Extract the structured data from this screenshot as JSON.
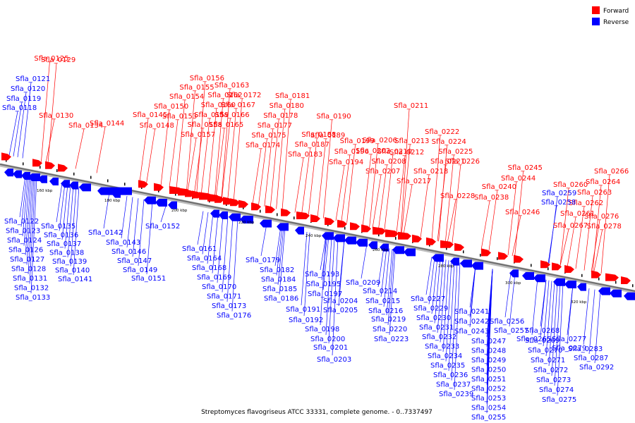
{
  "legend": {
    "forward_label": "Forward",
    "reverse_label": "Reverse",
    "forward_color": "#ff0000",
    "reverse_color": "#0000ff"
  },
  "caption": "Streptomyces flavogriseus ATCC 33331, complete genome. - 0..7337497",
  "ticks": [
    "160 kbp",
    "180 kbp",
    "200 kbp",
    "220 kbp",
    "240 kbp",
    "260 kbp",
    "280 kbp",
    "300 kbp",
    "320 kbp"
  ],
  "forward_genes": [
    "Sfla_0129",
    "Sfla_0125",
    "Sfla_0130",
    "Sfla_0134",
    "Sfla_0144",
    "Sfla_0145",
    "Sfla_0148",
    "Sfla_0150",
    "Sfla_0153",
    "Sfla_0154",
    "Sfla_0155",
    "Sfla_0156",
    "Sfla_0157",
    "Sfla_0158",
    "Sfla_0159",
    "Sfla_0160",
    "Sfla_0162",
    "Sfla_0163",
    "Sfla_0165",
    "Sfla_0166",
    "Sfla_0167",
    "Sfla_0172",
    "Sfla_0174",
    "Sfla_0175",
    "Sfla_0177",
    "Sfla_0178",
    "Sfla_0180",
    "Sfla_0181",
    "Sfla_0183",
    "Sfla_0187",
    "Sfla_0188",
    "Sfla_0189",
    "Sfla_0190",
    "Sfla_0194",
    "Sfla_0196",
    "Sfla_0199",
    "Sfla_0202",
    "Sfla_0206",
    "Sfla_0207",
    "Sfla_0208",
    "Sfla_0210",
    "Sfla_0211",
    "Sfla_0212",
    "Sfla_0213",
    "Sfla_0217",
    "Sfla_0218",
    "Sfla_0221",
    "Sfla_0222",
    "Sfla_0224",
    "Sfla_0225",
    "Sfla_0226",
    "Sfla_0228",
    "Sfla_0238",
    "Sfla_0240",
    "Sfla_0244",
    "Sfla_0245",
    "Sfla_0246",
    "Sfla_0261",
    "Sfla_0262",
    "Sfla_0263",
    "Sfla_0264",
    "Sfla_0266",
    "Sfla_0260",
    "Sfla_0267",
    "Sfla_0276",
    "Sfla_0278"
  ],
  "reverse_top_genes": [
    "Sfla_0121",
    "Sfla_0120",
    "Sfla_0119",
    "Sfla_0118",
    "Sfla_0259",
    "Sfla_0258"
  ],
  "reverse_genes": [
    "Sfla_0122",
    "Sfla_0123",
    "Sfla_0124",
    "Sfla_0126",
    "Sfla_0127",
    "Sfla_0128",
    "Sfla_0131",
    "Sfla_0132",
    "Sfla_0133",
    "Sfla_0135",
    "Sfla_0136",
    "Sfla_0137",
    "Sfla_0138",
    "Sfla_0139",
    "Sfla_0140",
    "Sfla_0141",
    "Sfla_0142",
    "Sfla_0143",
    "Sfla_0146",
    "Sfla_0147",
    "Sfla_0149",
    "Sfla_0151",
    "Sfla_0152",
    "Sfla_0161",
    "Sfla_0164",
    "Sfla_0168",
    "Sfla_0169",
    "Sfla_0170",
    "Sfla_0171",
    "Sfla_0173",
    "Sfla_0176",
    "Sfla_0179",
    "Sfla_0182",
    "Sfla_0184",
    "Sfla_0185",
    "Sfla_0186",
    "Sfla_0191",
    "Sfla_0192",
    "Sfla_0193",
    "Sfla_0195",
    "Sfla_0197",
    "Sfla_0198",
    "Sfla_0200",
    "Sfla_0201",
    "Sfla_0203",
    "Sfla_0204",
    "Sfla_0205",
    "Sfla_0209",
    "Sfla_0214",
    "Sfla_0215",
    "Sfla_0216",
    "Sfla_0219",
    "Sfla_0220",
    "Sfla_0223",
    "Sfla_0227",
    "Sfla_0229",
    "Sfla_0230",
    "Sfla_0231",
    "Sfla_0232",
    "Sfla_0233",
    "Sfla_0234",
    "Sfla_0235",
    "Sfla_0236",
    "Sfla_0237",
    "Sfla_0239",
    "Sfla_0241",
    "Sfla_0242",
    "Sfla_0243",
    "Sfla_0247",
    "Sfla_0248",
    "Sfla_0249",
    "Sfla_0250",
    "Sfla_0251",
    "Sfla_0252",
    "Sfla_0253",
    "Sfla_0254",
    "Sfla_0255",
    "Sfla_0256",
    "Sfla_0257",
    "Sfla_0265",
    "Sfla_0268",
    "Sfla_0269",
    "Sfla_0270",
    "Sfla_0271",
    "Sfla_0272",
    "Sfla_0273",
    "Sfla_0274",
    "Sfla_0275",
    "Sfla_0277",
    "Sfla_0279",
    "Sfla_0283",
    "Sfla_0287",
    "Sfla_0292"
  ]
}
